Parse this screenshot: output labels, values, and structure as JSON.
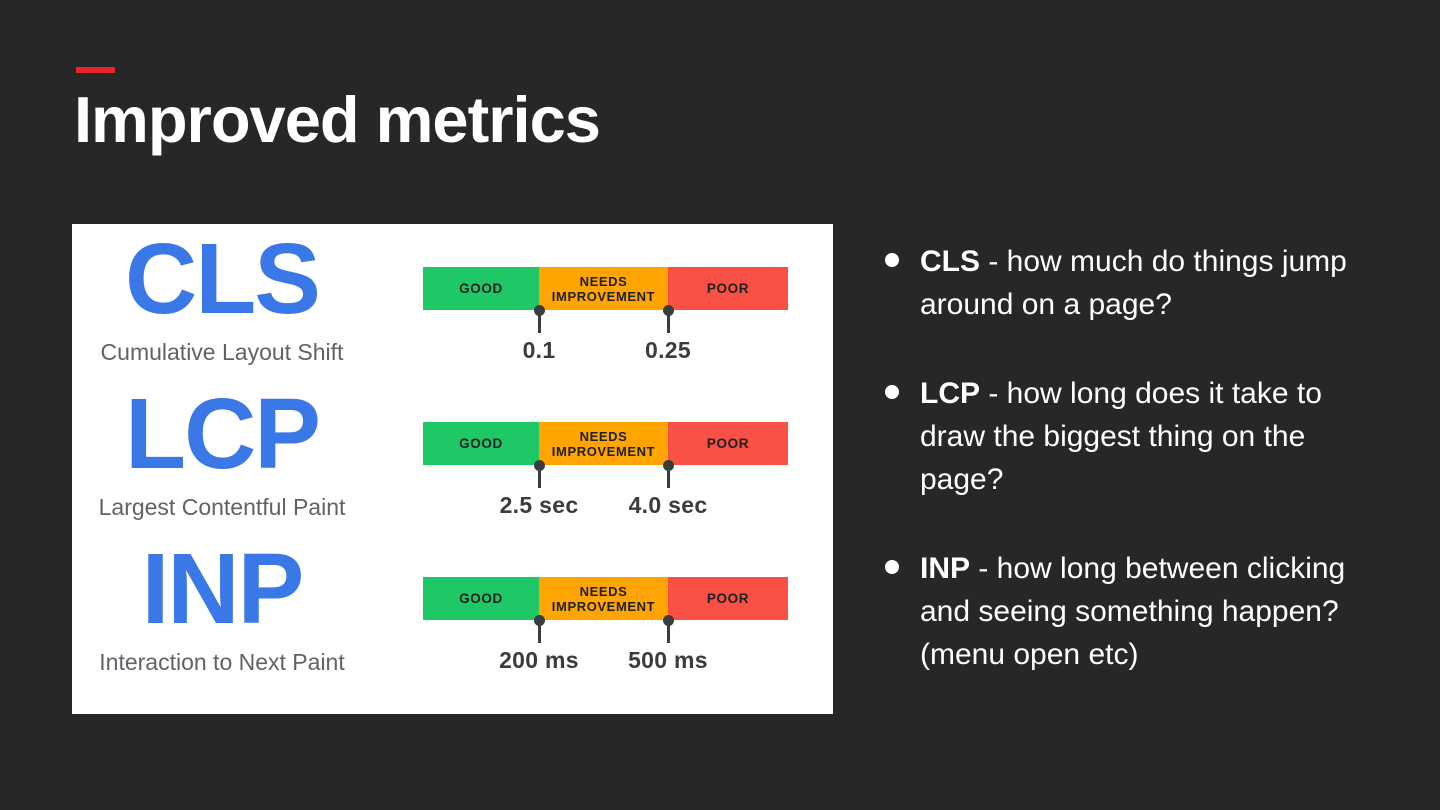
{
  "theme": {
    "bg": "#252729",
    "accent": "#e8232e",
    "text": "#ffffff",
    "blue": "#3b78e7",
    "gray": "#5f6368",
    "good": "#1ec866",
    "needs_improvement": "#ffa400",
    "poor": "#f85045",
    "band_text": "#212121",
    "marker": "#3a3d40",
    "card_bg": "#ffffff"
  },
  "slide": {
    "title": "Improved metrics"
  },
  "figure": {
    "band_labels": [
      "GOOD",
      "NEEDS IMPROVEMENT",
      "POOR"
    ],
    "metrics": [
      {
        "abbr": "CLS",
        "full": "Cumulative Layout Shift",
        "thresholds": [
          "0.1",
          "0.25"
        ]
      },
      {
        "abbr": "LCP",
        "full": "Largest Contentful Paint",
        "thresholds": [
          "2.5 sec",
          "4.0 sec"
        ]
      },
      {
        "abbr": "INP",
        "full": "Interaction to Next Paint",
        "thresholds": [
          "200 ms",
          "500 ms"
        ]
      }
    ]
  },
  "bullets": [
    {
      "term": "CLS",
      "text": "- how much do things jump around on a page?"
    },
    {
      "term": "LCP",
      "text": "- how long does it take to draw the biggest thing on the page?"
    },
    {
      "term": "INP",
      "text": "- how long between clicking and seeing something happen? (menu open etc)"
    }
  ]
}
